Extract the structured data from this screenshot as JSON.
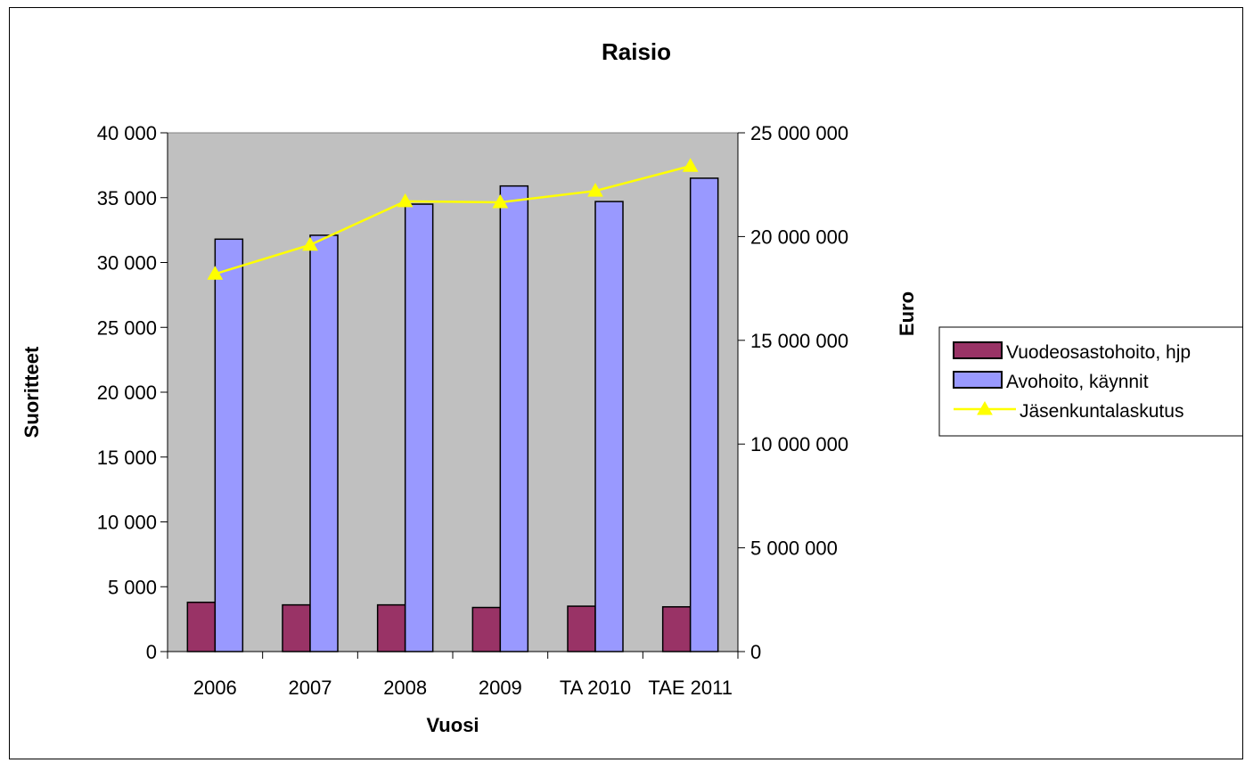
{
  "chart_data": {
    "type": "bar",
    "title": "Raisio",
    "xlabel": "Vuosi",
    "ylabel": "Suoritteet",
    "y2label": "Euro",
    "categories": [
      "2006",
      "2007",
      "2008",
      "2009",
      "TA 2010",
      "TAE 2011"
    ],
    "ylim": [
      0,
      40000
    ],
    "y2lim": [
      0,
      25000000
    ],
    "yticks": [
      "0",
      "5 000",
      "10 000",
      "15 000",
      "20 000",
      "25 000",
      "30 000",
      "35 000",
      "40 000"
    ],
    "y2ticks": [
      "0",
      "5 000 000",
      "10 000 000",
      "15 000 000",
      "20 000 000",
      "25 000 000"
    ],
    "series": [
      {
        "name": "Vuodeosastohoito, hjp",
        "type": "bar",
        "axis": "left",
        "color": "#993366",
        "values": [
          3800,
          3600,
          3600,
          3400,
          3500,
          3450
        ]
      },
      {
        "name": "Avohoito, käynnit",
        "type": "bar",
        "axis": "left",
        "color": "#9999FF",
        "values": [
          31800,
          32100,
          34500,
          35900,
          34700,
          36500
        ]
      },
      {
        "name": "Jäsenkuntalaskutus",
        "type": "line",
        "axis": "right",
        "color": "#FFFF00",
        "values": [
          18200000,
          19600000,
          21700000,
          21650000,
          22200000,
          23400000
        ]
      }
    ],
    "grid": false,
    "legend": "right",
    "plot_background": "#C0C0C0"
  }
}
